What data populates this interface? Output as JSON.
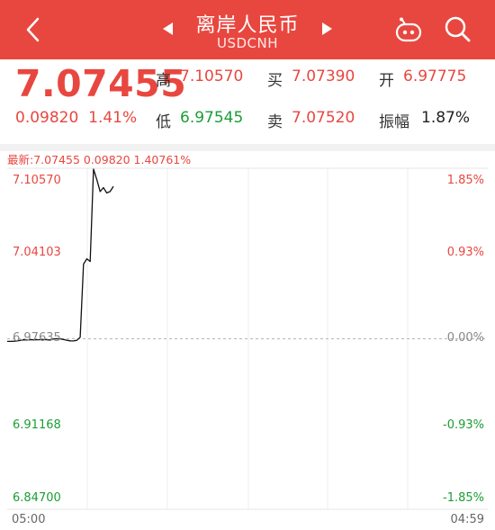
{
  "header": {
    "back_icon": "chevron-left-icon",
    "title": "离岸人民币",
    "subtitle": "USDCNH",
    "prev_icon": "triangle-left-icon",
    "next_icon": "triangle-right-icon",
    "assistant_icon": "robot-icon",
    "search_icon": "search-icon",
    "bg_color": "#e8473f"
  },
  "quote": {
    "price": "7.07455",
    "change": "0.09820",
    "change_pct": "1.41%",
    "high_label": "高",
    "high": "7.10570",
    "low_label": "低",
    "low": "6.97545",
    "bid_label": "买",
    "bid": "7.07390",
    "ask_label": "卖",
    "ask": "7.07520",
    "open_label": "开",
    "open": "6.97775",
    "amp_label": "振幅",
    "amplitude": "1.87%",
    "up_color": "#e8473f",
    "down_color": "#1b9d35"
  },
  "chart": {
    "latest_label": "最新:7.07455 0.09820 1.40761%",
    "y_left": [
      "7.10570",
      "7.04103",
      "6.97635",
      "6.91168",
      "6.84700"
    ],
    "y_right": [
      "1.85%",
      "0.93%",
      "0.00%",
      "-0.93%",
      "-1.85%"
    ],
    "x_start": "05:00",
    "x_end": "04:59"
  },
  "chart_data": {
    "type": "line",
    "title": "",
    "xlabel": "",
    "ylabel": "",
    "ylim": [
      6.847,
      7.1057
    ],
    "baseline": 6.97635,
    "x_range": [
      "05:00",
      "04:59"
    ],
    "series": [
      {
        "values": [
          6.9744,
          6.9744,
          6.9745,
          6.9748,
          6.9752,
          6.9755,
          6.9754,
          6.9756,
          6.9757,
          6.9756,
          6.9757,
          6.9758,
          6.9756,
          6.9757,
          6.9762,
          6.9764,
          6.9763,
          6.9758,
          6.9752,
          6.9748,
          6.9747,
          6.9752,
          6.9775,
          7.033,
          7.037,
          7.035,
          7.105,
          7.097,
          7.088,
          7.091,
          7.087,
          7.088,
          7.092
        ]
      }
    ]
  }
}
